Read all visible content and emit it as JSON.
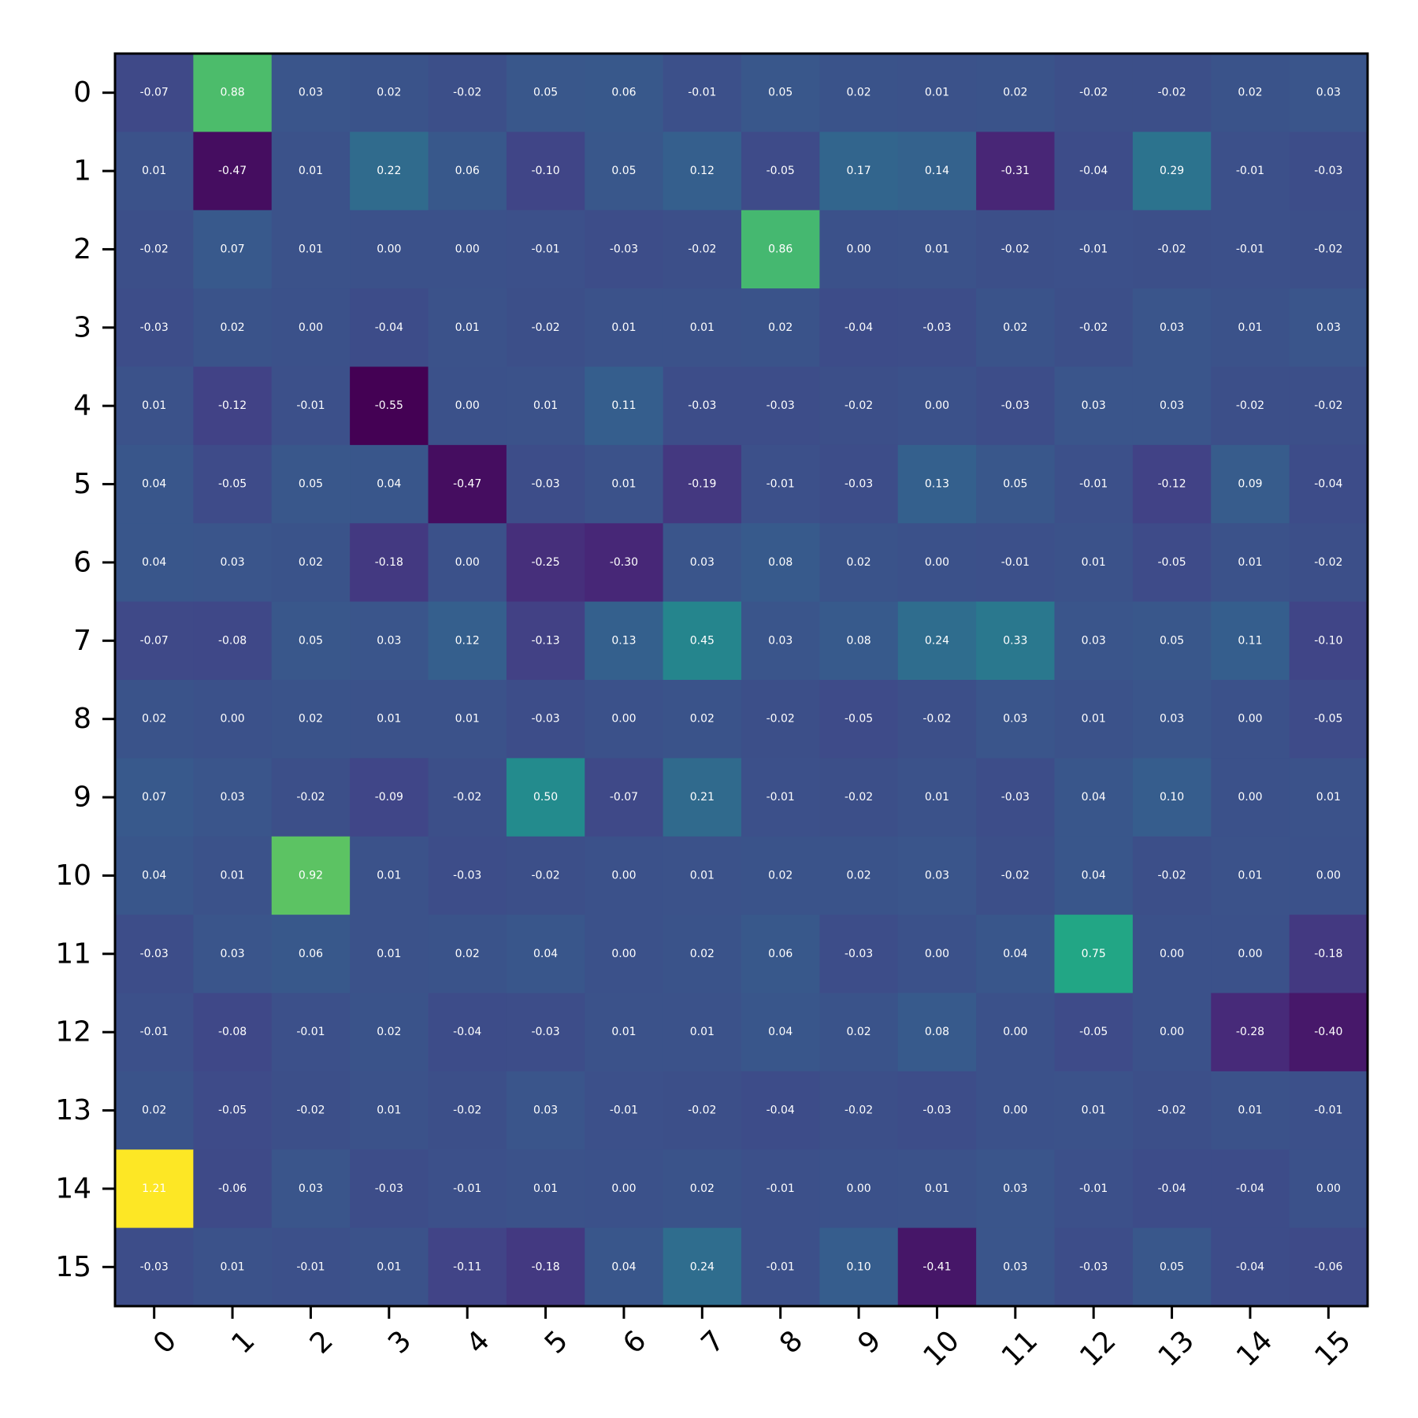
{
  "chart_data": {
    "type": "heatmap",
    "title": "",
    "xlabel": "",
    "ylabel": "",
    "x_categories": [
      "0",
      "1",
      "2",
      "3",
      "4",
      "5",
      "6",
      "7",
      "8",
      "9",
      "10",
      "11",
      "12",
      "13",
      "14",
      "15"
    ],
    "y_categories": [
      "0",
      "1",
      "2",
      "3",
      "4",
      "5",
      "6",
      "7",
      "8",
      "9",
      "10",
      "11",
      "12",
      "13",
      "14",
      "15"
    ],
    "x_tick_rotation_deg": -45,
    "colormap": "viridis",
    "color_range": [
      -0.55,
      1.21
    ],
    "cell_labels_shown": true,
    "colorbar": false,
    "grid": false,
    "values": [
      [
        -0.07,
        0.88,
        0.03,
        0.02,
        -0.02,
        0.05,
        0.06,
        -0.01,
        0.05,
        0.02,
        0.01,
        0.02,
        -0.02,
        -0.02,
        0.02,
        0.03
      ],
      [
        0.01,
        -0.47,
        0.01,
        0.22,
        0.06,
        -0.1,
        0.05,
        0.12,
        -0.05,
        0.17,
        0.14,
        -0.31,
        -0.04,
        0.29,
        -0.01,
        -0.03
      ],
      [
        -0.02,
        0.07,
        0.01,
        0.0,
        0.0,
        -0.01,
        -0.03,
        -0.02,
        0.86,
        0.0,
        0.01,
        -0.02,
        -0.01,
        -0.02,
        -0.01,
        -0.02
      ],
      [
        -0.03,
        0.02,
        -0.0,
        -0.04,
        0.01,
        -0.02,
        0.01,
        0.01,
        0.02,
        -0.04,
        -0.03,
        0.02,
        -0.02,
        0.03,
        0.01,
        0.03
      ],
      [
        0.01,
        -0.12,
        -0.01,
        -0.55,
        -0.0,
        0.01,
        0.11,
        -0.03,
        -0.03,
        -0.02,
        0.0,
        -0.03,
        0.03,
        0.03,
        -0.02,
        -0.02
      ],
      [
        0.04,
        -0.05,
        0.05,
        0.04,
        -0.47,
        -0.03,
        0.01,
        -0.19,
        -0.01,
        -0.03,
        0.13,
        0.05,
        -0.01,
        -0.12,
        0.09,
        -0.04
      ],
      [
        0.04,
        0.03,
        0.02,
        -0.18,
        0.0,
        -0.25,
        -0.3,
        0.03,
        0.08,
        0.02,
        -0.0,
        -0.01,
        0.01,
        -0.05,
        0.01,
        -0.02
      ],
      [
        -0.07,
        -0.08,
        0.05,
        0.03,
        0.12,
        -0.13,
        0.13,
        0.45,
        0.03,
        0.08,
        0.24,
        0.33,
        0.03,
        0.05,
        0.11,
        -0.1
      ],
      [
        0.02,
        0.0,
        0.02,
        0.01,
        0.01,
        -0.03,
        -0.0,
        0.02,
        -0.02,
        -0.05,
        -0.02,
        0.03,
        0.01,
        0.03,
        0.0,
        -0.05
      ],
      [
        0.07,
        0.03,
        -0.02,
        -0.09,
        -0.02,
        0.5,
        -0.07,
        0.21,
        -0.01,
        -0.02,
        0.01,
        -0.03,
        0.04,
        0.1,
        -0.0,
        0.01
      ],
      [
        0.04,
        0.01,
        0.92,
        0.01,
        -0.03,
        -0.02,
        0.0,
        0.01,
        0.02,
        0.02,
        0.03,
        -0.02,
        0.04,
        -0.02,
        0.01,
        0.0
      ],
      [
        -0.03,
        0.03,
        0.06,
        0.01,
        0.02,
        0.04,
        -0.0,
        0.02,
        0.06,
        -0.03,
        0.0,
        0.04,
        0.75,
        -0.0,
        -0.0,
        -0.18
      ],
      [
        -0.01,
        -0.08,
        -0.01,
        0.02,
        -0.04,
        -0.03,
        0.01,
        0.01,
        0.04,
        0.02,
        0.08,
        0.0,
        -0.05,
        0.0,
        -0.28,
        -0.4
      ],
      [
        0.02,
        -0.05,
        -0.02,
        0.01,
        -0.02,
        0.03,
        -0.01,
        -0.02,
        -0.04,
        -0.02,
        -0.03,
        -0.0,
        0.01,
        -0.02,
        0.01,
        -0.01
      ],
      [
        1.21,
        -0.06,
        0.03,
        -0.03,
        -0.01,
        0.01,
        -0.0,
        0.02,
        -0.01,
        -0.0,
        0.01,
        0.03,
        -0.01,
        -0.04,
        -0.04,
        0.0
      ],
      [
        -0.03,
        0.01,
        -0.01,
        0.01,
        -0.11,
        -0.18,
        0.04,
        0.24,
        -0.01,
        0.1,
        -0.41,
        0.03,
        -0.03,
        0.05,
        -0.04,
        -0.06
      ]
    ]
  }
}
